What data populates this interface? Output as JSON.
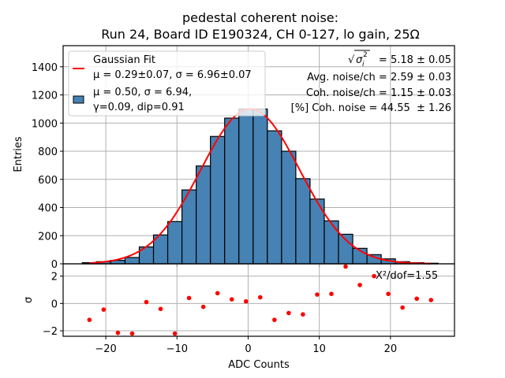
{
  "chart_data": [
    {
      "type": "bar",
      "panel": "histogram",
      "title": [
        "pedestal coherent noise:",
        "Run 24, Board ID E190324, CH 0-127, lo gain, 25Ω"
      ],
      "xlabel": "",
      "ylabel": "Entries",
      "xlim": [
        -26,
        29
      ],
      "ylim": [
        0,
        1550
      ],
      "yticks": [
        0,
        200,
        400,
        600,
        800,
        1000,
        1200,
        1400
      ],
      "ytick_labels": [
        "0",
        "200",
        "400",
        "600",
        "800",
        "1000",
        "1200",
        "1400"
      ],
      "xticks": [
        -20,
        -10,
        0,
        10,
        20
      ],
      "grid": true,
      "bin_width": 2,
      "bin_centers": [
        -22.3,
        -20.3,
        -18.3,
        -16.3,
        -14.3,
        -12.3,
        -10.3,
        -8.3,
        -6.3,
        -4.3,
        -2.3,
        -0.3,
        1.7,
        3.7,
        5.7,
        7.7,
        9.7,
        11.7,
        13.7,
        15.7,
        17.7,
        19.7,
        21.7,
        23.7,
        25.7
      ],
      "values": [
        8,
        15,
        25,
        45,
        120,
        205,
        300,
        525,
        695,
        905,
        1035,
        1100,
        1100,
        945,
        800,
        605,
        460,
        305,
        210,
        110,
        65,
        35,
        15,
        8,
        4
      ],
      "bar_color": "#4682b4",
      "fit": {
        "name": "Gaussian Fit",
        "mu": 0.29,
        "sigma": 6.96,
        "amplitude": 1100,
        "x_range": [
          -22.3,
          25.7
        ],
        "color": "#ff0000"
      },
      "legend": {
        "placement": "top-left",
        "entries": [
          {
            "label_lines": [
              "Gaussian Fit",
              "μ = 0.29±0.07, σ = 6.96±0.07"
            ],
            "marker": "line",
            "color": "#ff0000"
          },
          {
            "label_lines": [
              "μ = 0.50, σ = 6.94,",
              "γ=0.09, dip=0.91"
            ],
            "marker": "patch",
            "color": "#4682b4"
          }
        ]
      },
      "annotations": {
        "placement": "top-right",
        "lines": [
          {
            "prefix": "√",
            "symbol": "σ",
            "sup": "2",
            "sub": "i",
            "text": " = 5.18 ± 0.05"
          },
          {
            "text": "Avg. noise/ch = 2.59 ± 0.03"
          },
          {
            "text": "Coh. noise/ch = 1.15 ± 0.03"
          },
          {
            "text": "[%] Coh. noise = 44.55  ± 1.26"
          }
        ]
      }
    },
    {
      "type": "scatter",
      "panel": "residuals",
      "xlabel": "ADC Counts",
      "ylabel": "σ",
      "xlim": [
        -26,
        29
      ],
      "ylim": [
        -2.4,
        2.9
      ],
      "yticks": [
        -2,
        0,
        2
      ],
      "ytick_labels": [
        "−2",
        "0",
        "2"
      ],
      "xticks": [
        -20,
        -10,
        0,
        10,
        20
      ],
      "xtick_labels": [
        "−20",
        "−10",
        "0",
        "10",
        "20"
      ],
      "grid": true,
      "x": [
        -22.3,
        -20.3,
        -18.3,
        -16.3,
        -14.3,
        -12.3,
        -10.3,
        -8.3,
        -6.3,
        -4.3,
        -2.3,
        -0.3,
        1.7,
        3.7,
        5.7,
        7.7,
        9.7,
        11.7,
        13.7,
        15.7,
        17.7,
        19.7,
        21.7,
        23.7,
        25.7
      ],
      "y": [
        -1.2,
        -0.45,
        -2.15,
        -2.2,
        0.1,
        -0.4,
        -2.2,
        0.4,
        -0.25,
        0.75,
        0.3,
        0.15,
        0.45,
        -1.2,
        -0.7,
        -0.8,
        0.65,
        0.7,
        2.7,
        1.35,
        2.0,
        0.7,
        -0.3,
        0.35,
        0.25
      ],
      "point_color": "#ff0000",
      "annotation": "X²/dof=1.55"
    }
  ]
}
